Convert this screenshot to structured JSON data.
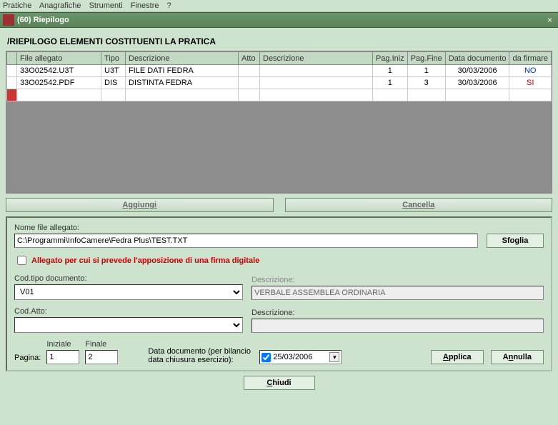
{
  "menubar": {
    "items": [
      "Pratiche",
      "Anagrafiche",
      "Strumenti",
      "Finestre",
      "?"
    ]
  },
  "titlebar": {
    "icon_text": "",
    "title": "(60) Riepilogo",
    "close": "×"
  },
  "section_title": "/RIEPILOGO ELEMENTI COSTITUENTI LA PRATICA",
  "grid": {
    "headers": {
      "mark": "",
      "file": "File allegato",
      "tipo": "Tipo",
      "descr": "Descrizione",
      "atto": "Atto",
      "descr2": "Descrizione",
      "pag_iniz": "Pag.Iniz",
      "pag_fine": "Pag.Fine",
      "data_doc": "Data documento",
      "da_firmare": "da firmare"
    },
    "rows": [
      {
        "file": "33O02542.U3T",
        "tipo": "U3T",
        "descr": "FILE DATI FEDRA",
        "atto": "",
        "descr2": "",
        "pag_iniz": "1",
        "pag_fine": "1",
        "data_doc": "30/03/2006",
        "da_firmare": "NO",
        "firm_class": "nofirm-no"
      },
      {
        "file": "33O02542.PDF",
        "tipo": "DIS",
        "descr": "DISTINTA FEDRA",
        "atto": "",
        "descr2": "",
        "pag_iniz": "1",
        "pag_fine": "3",
        "data_doc": "30/03/2006",
        "da_firmare": "SI",
        "firm_class": "nofirm-si"
      }
    ]
  },
  "buttons": {
    "aggiungi": "Aggiungi",
    "cancella": "Cancella"
  },
  "form": {
    "label_nomefile": "Nome file allegato:",
    "nomefile": "C:\\Programmi\\InfoCamere\\Fedra Plus\\TEST.TXT",
    "sfoglia": "Sfoglia",
    "check_label": "Allegato per cui si prevede l'apposizione di una firma digitale",
    "label_codtipo": "Cod.tipo documento:",
    "codtipo": "V01",
    "label_descr": "Descrizione:",
    "descr": "VERBALE ASSEMBLEA ORDINARIA",
    "label_codatto": "Cod.Atto:",
    "codatto": "",
    "label_descr2": "Descrizione:",
    "descr2": "",
    "label_pagina": "Pagina:",
    "label_iniziale": "Iniziale",
    "label_finale": "Finale",
    "pag_iniziale": "1",
    "pag_finale": "2",
    "label_datadoc": "Data documento (per bilancio data chiusura esercizio):",
    "datadoc": "25/03/2006",
    "applica": "Applica",
    "annulla": "Annulla"
  },
  "chiudi": "Chiudi"
}
